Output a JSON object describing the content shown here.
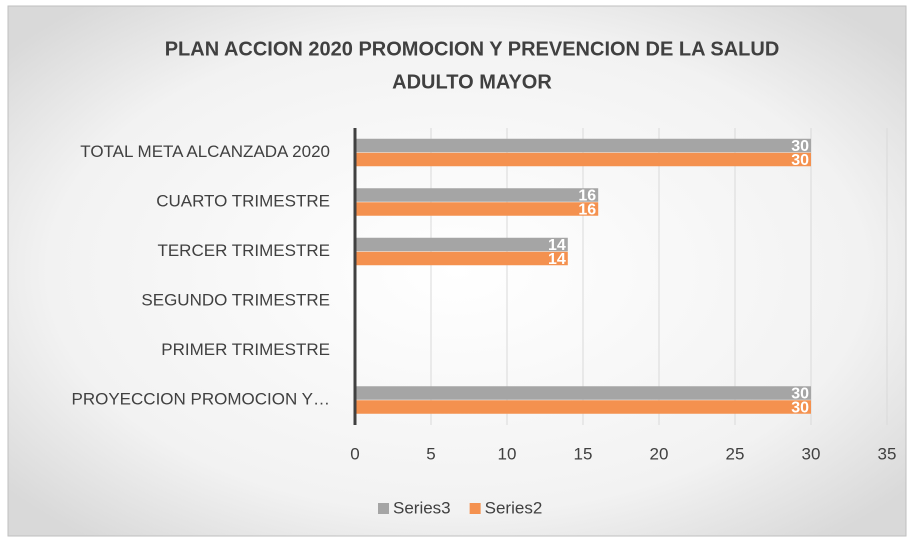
{
  "chart_data": {
    "type": "bar",
    "orientation": "horizontal",
    "title": [
      "PLAN ACCION 2020 PROMOCION Y PREVENCION DE LA SALUD",
      "ADULTO MAYOR"
    ],
    "categories": [
      "TOTAL META ALCANZADA 2020",
      "CUARTO TRIMESTRE",
      "TERCER TRIMESTRE",
      "SEGUNDO TRIMESTRE",
      "PRIMER TRIMESTRE",
      "PROYECCION  PROMOCION Y…"
    ],
    "series": [
      {
        "name": "Series3",
        "color": "#a5a5a5",
        "values": [
          30,
          16,
          14,
          null,
          null,
          30
        ]
      },
      {
        "name": "Series2",
        "color": "#f4914f",
        "values": [
          30,
          16,
          14,
          null,
          null,
          30
        ]
      }
    ],
    "xlim": [
      0,
      35
    ],
    "xticks": [
      0,
      5,
      10,
      15,
      20,
      25,
      30,
      35
    ],
    "grid": true,
    "legend": "bottom"
  }
}
